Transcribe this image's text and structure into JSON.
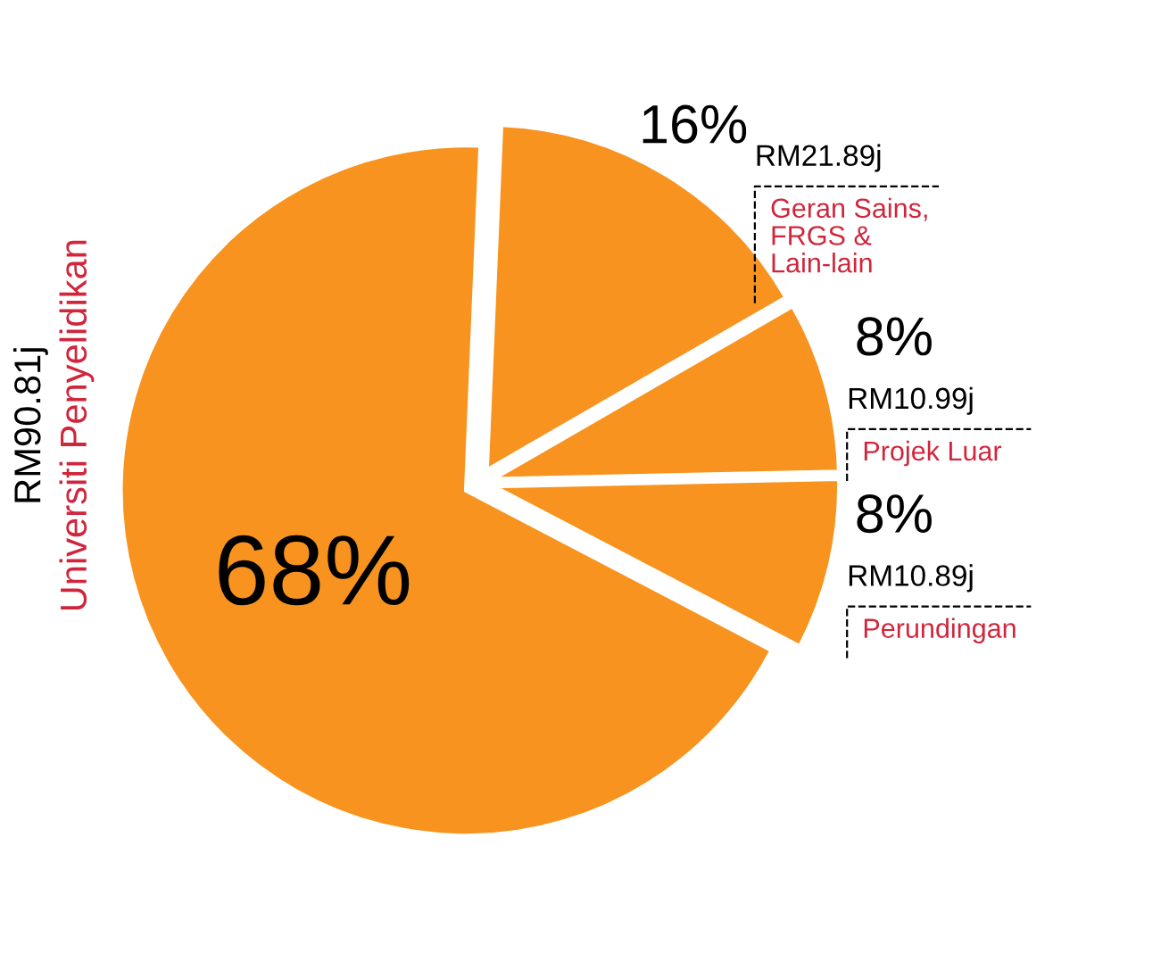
{
  "chart_data": {
    "type": "pie",
    "categories": [
      "Geran Sains,\nFRGS &\nLain-lain",
      "Universiti Penyelidikan",
      "Perundingan",
      "Projek Luar"
    ],
    "values": [
      16,
      68,
      8,
      8
    ],
    "value_labels": [
      "16%",
      "68%",
      "8%",
      "8%"
    ],
    "colors": [
      "#f7931e",
      "#f7931e",
      "#f7931e",
      "#f7931e"
    ],
    "annotations": [
      "RM21.89j",
      "RM90.81j",
      "RM10.89j",
      "RM10.99j"
    ]
  }
}
